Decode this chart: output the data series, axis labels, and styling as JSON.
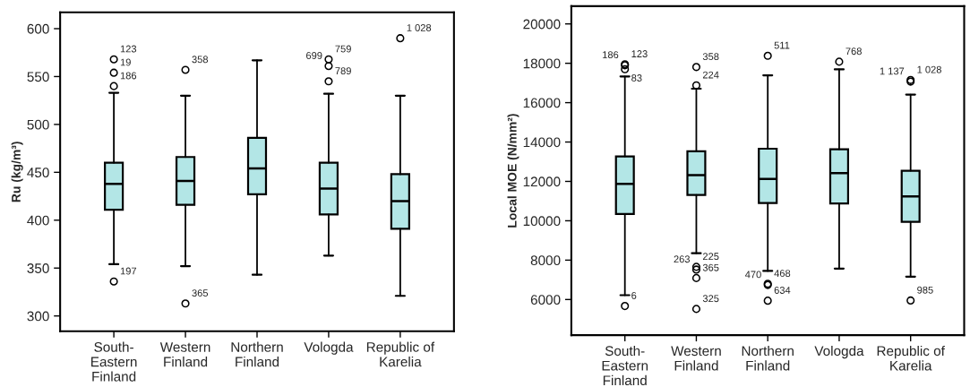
{
  "chart_data": [
    {
      "type": "box",
      "ylabel": "Ru (kg/m³)",
      "categories": [
        "South-\nEastern\nFinland",
        "Western\nFinland",
        "Northern\nFinland",
        "Vologda",
        "Republic of\nKarelia"
      ],
      "series": [
        {
          "color": "#b3e6e6",
          "boxes": [
            {
              "low": 354,
              "q1": 411,
              "median": 438,
              "q3": 460,
              "high": 533,
              "outliers": [
                568,
                554,
                540,
                336
              ]
            },
            {
              "low": 352,
              "q1": 416,
              "median": 441,
              "q3": 466,
              "high": 530,
              "outliers": [
                557,
                313
              ]
            },
            {
              "low": 343,
              "q1": 427,
              "median": 454,
              "q3": 486,
              "high": 567
            },
            {
              "low": 363,
              "q1": 406,
              "median": 433,
              "q3": 460,
              "high": 532,
              "outliers": [
                568,
                561,
                545
              ]
            },
            {
              "low": 321,
              "q1": 391,
              "median": 420,
              "q3": 448,
              "high": 530,
              "outliers": [
                590
              ]
            }
          ]
        }
      ],
      "ylim": [
        284,
        617
      ],
      "yticks": [
        300,
        350,
        400,
        450,
        500,
        550,
        600
      ],
      "grid": false,
      "annotations": [
        "123",
        "19",
        "186",
        "197",
        "358",
        "365",
        "759",
        "699",
        "789",
        "1 028"
      ]
    },
    {
      "type": "box",
      "ylabel": "Local MOE (N/mm²)",
      "categories": [
        "South-\nEastern\nFinland",
        "Western\nFinland",
        "Northern\nFinland",
        "Vologda",
        "Republic of\nKarelia"
      ],
      "series": [
        {
          "color": "#b3e6e6",
          "boxes": [
            {
              "low": 6220,
              "q1": 10340,
              "median": 11870,
              "q3": 13270,
              "high": 17330,
              "outliers": [
                17950,
                17900,
                17700,
                5670
              ]
            },
            {
              "low": 8350,
              "q1": 11310,
              "median": 12320,
              "q3": 13530,
              "high": 16710,
              "outliers": [
                17810,
                16880,
                7660,
                7520,
                7090,
                5520
              ]
            },
            {
              "low": 7450,
              "q1": 10900,
              "median": 12130,
              "q3": 13660,
              "high": 17390,
              "outliers": [
                18380,
                6800,
                6740,
                5940
              ]
            },
            {
              "low": 7570,
              "q1": 10880,
              "median": 12420,
              "q3": 13630,
              "high": 17690,
              "outliers": [
                18080
              ]
            },
            {
              "low": 7160,
              "q1": 9950,
              "median": 11240,
              "q3": 12540,
              "high": 16410,
              "outliers": [
                17150,
                17070,
                5950
              ]
            }
          ]
        }
      ],
      "ylim": [
        4190,
        20900
      ],
      "yticks": [
        6000,
        8000,
        10000,
        12000,
        14000,
        16000,
        18000,
        20000
      ],
      "grid": false,
      "annotations": [
        "123",
        "186",
        "83",
        "6",
        "358",
        "224",
        "225",
        "263",
        "365",
        "325",
        "511",
        "468",
        "470",
        "634",
        "768",
        "1 028",
        "1 137",
        "985"
      ]
    }
  ]
}
